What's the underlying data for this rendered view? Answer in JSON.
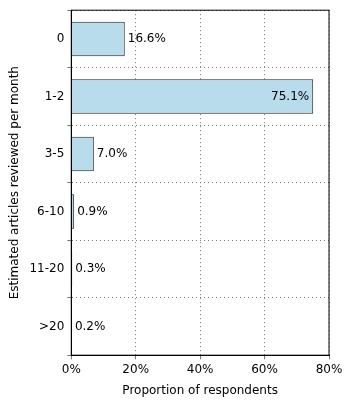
{
  "chart_data": {
    "type": "bar",
    "orientation": "horizontal",
    "x_label": "Proportion of respondents",
    "y_label": "Estimated articles reviewed per month",
    "categories": [
      "0",
      "1-2",
      "3-5",
      "6-10",
      "11-20",
      ">20"
    ],
    "values": [
      16.6,
      75.1,
      7.0,
      0.9,
      0.3,
      0.2
    ],
    "value_labels": [
      "16.6%",
      "75.1%",
      "7.0%",
      "0.9%",
      "0.3%",
      "0.2%"
    ],
    "data_labels": true,
    "color": "#b9dcec",
    "xlim": [
      0,
      80
    ],
    "xticks": [
      {
        "value": 0,
        "label": "0%"
      },
      {
        "value": 20,
        "label": "20%"
      },
      {
        "value": 40,
        "label": "40%"
      },
      {
        "value": 60,
        "label": "60%"
      },
      {
        "value": 80,
        "label": "80%"
      }
    ],
    "grid": true
  }
}
